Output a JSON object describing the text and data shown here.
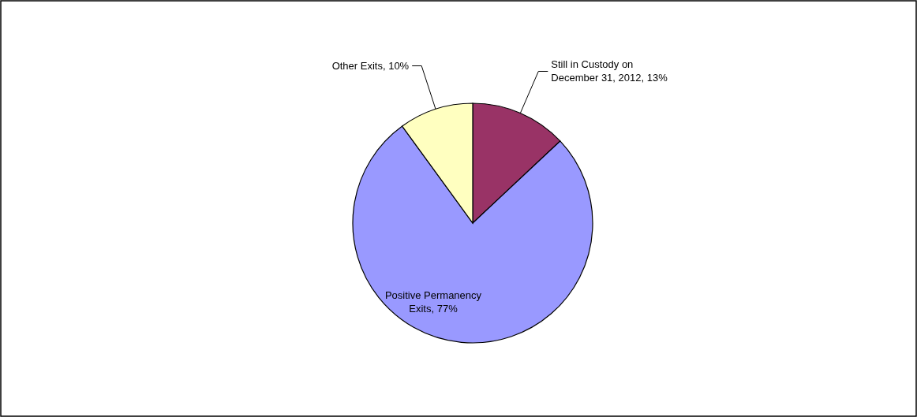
{
  "chart_data": {
    "type": "pie",
    "categories": [
      "Still in Custody on December 31, 2012",
      "Positive Permanency Exits",
      "Other Exits"
    ],
    "value_labels": [
      "13%",
      "77%",
      "10%"
    ],
    "values": [
      13,
      77,
      10
    ],
    "colors": [
      "#993366",
      "#9999ff",
      "#ffffc0"
    ]
  }
}
